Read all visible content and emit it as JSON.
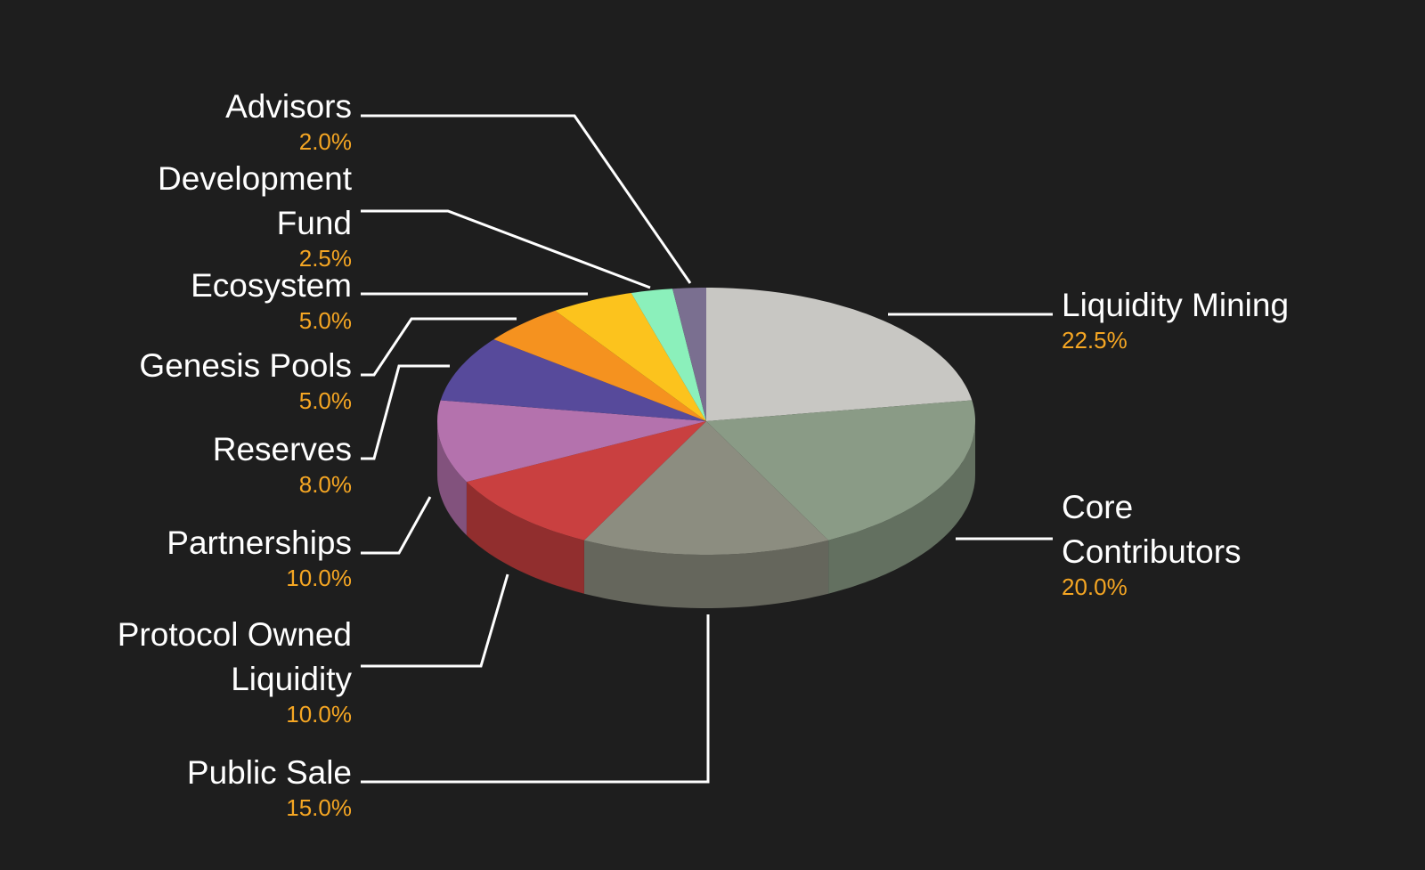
{
  "chart_data": {
    "type": "pie",
    "categories": [
      "Liquidity Mining",
      "Core Contributors",
      "Public Sale",
      "Protocol Owned Liquidity",
      "Partnerships",
      "Reserves",
      "Genesis Pools",
      "Ecosystem",
      "Development Fund",
      "Advisors"
    ],
    "values": [
      22.5,
      20.0,
      15.0,
      10.0,
      10.0,
      8.0,
      5.0,
      5.0,
      2.5,
      2.0
    ],
    "value_labels": [
      "22.5%",
      "20.0%",
      "15.0%",
      "10.0%",
      "10.0%",
      "8.0%",
      "5.0%",
      "5.0%",
      "2.5%",
      "2.0%"
    ],
    "colors": [
      "#c8c7c3",
      "#8a9b86",
      "#8c8d80",
      "#c94040",
      "#b472ad",
      "#574a9b",
      "#f5921f",
      "#fcc31d",
      "#8bf0bb",
      "#7a6f90"
    ]
  }
}
